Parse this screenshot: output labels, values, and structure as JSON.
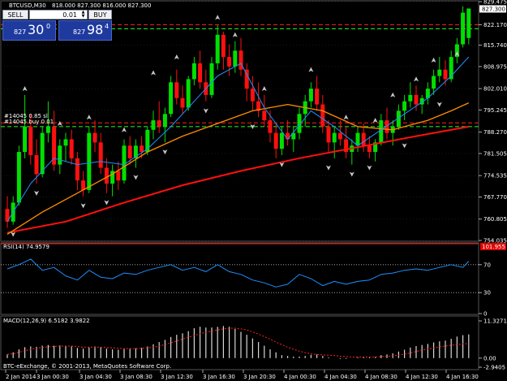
{
  "header": {
    "symbol": "BTCUSD,M30",
    "ohlc": "818.000 827.300 816.000 827.300"
  },
  "trade_panel": {
    "sell_label": "SELL",
    "buy_label": "BUY",
    "lot_value": "0.01",
    "sell_price_small": "827",
    "sell_price_big": "30",
    "sell_price_sup": "0",
    "buy_price_small": "827",
    "buy_price_big": "98",
    "buy_price_sup": "4"
  },
  "colors": {
    "bull": "#00e000",
    "bear": "#ff1010",
    "ma_slow": "#ff1010",
    "ma_mid": "#ff8c00",
    "ma_fast": "#1e90ff",
    "grid": "#2f2f2f",
    "sell_btn_bg": "#1f3a9e"
  },
  "chart_data": [
    {
      "type": "candlestick",
      "title": "BTCUSD,M30",
      "subtitle": "818.000 827.300 816.000 827.300",
      "ylim": [
        754.05,
        829.475
      ],
      "y_ticks": [
        "829.475",
        "822.170",
        "815.740",
        "808.975",
        "802.010",
        "795.245",
        "788.270",
        "781.505",
        "774.535",
        "767.770",
        "760.805",
        "754.035"
      ],
      "current_price": "827.300",
      "x_ticks": [
        "2 Jan 2014",
        "3 Jan 00:30",
        "3 Jan 04:30",
        "3 Jan 08:30",
        "3 Jan 12:30",
        "3 Jan 16:30",
        "3 Jan 20:30",
        "4 Jan 00:30",
        "4 Jan 04:30",
        "4 Jan 08:30",
        "4 Jan 12:30",
        "4 Jan 16:30"
      ],
      "order_label": "#14045  0.85 sl",
      "order_label_2": "#14045 buy 0.01",
      "order_levels": {
        "take_profit": 822.2,
        "entry_upper": 820.9,
        "stop_loss": 791.2,
        "entry": 790.0
      },
      "ohlc": [
        [
          764.0,
          768.0,
          758.0,
          760.0
        ],
        [
          760.0,
          768.0,
          759.0,
          766.0
        ],
        [
          766.0,
          784.0,
          765.0,
          782.0
        ],
        [
          782.0,
          800.0,
          780.0,
          790.0
        ],
        [
          790.0,
          794.0,
          778.0,
          781.0
        ],
        [
          781.0,
          786.0,
          772.0,
          775.0
        ],
        [
          775.0,
          790.0,
          774.0,
          788.0
        ],
        [
          788.0,
          798.0,
          785.0,
          790.0
        ],
        [
          790.0,
          795.0,
          776.0,
          778.0
        ],
        [
          778.0,
          786.0,
          775.0,
          784.0
        ],
        [
          784.0,
          788.0,
          779.0,
          786.0
        ],
        [
          786.0,
          789.0,
          778.0,
          780.0
        ],
        [
          780.0,
          782.0,
          770.0,
          773.0
        ],
        [
          773.0,
          776.0,
          768.0,
          770.0
        ],
        [
          770.0,
          790.0,
          769.0,
          788.0
        ],
        [
          788.0,
          792.0,
          782.0,
          785.0
        ],
        [
          785.0,
          788.0,
          775.0,
          777.0
        ],
        [
          777.0,
          780.0,
          769.0,
          772.0
        ],
        [
          772.0,
          778.0,
          768.0,
          776.0
        ],
        [
          776.0,
          779.0,
          770.0,
          773.0
        ],
        [
          773.0,
          786.0,
          772.0,
          784.0
        ],
        [
          784.0,
          787.0,
          778.0,
          780.0
        ],
        [
          780.0,
          786.0,
          777.0,
          784.0
        ],
        [
          784.0,
          787.0,
          780.0,
          782.0
        ],
        [
          782.0,
          790.0,
          781.0,
          789.0
        ],
        [
          789.0,
          795.0,
          786.0,
          792.0
        ],
        [
          792.0,
          798.0,
          788.0,
          790.0
        ],
        [
          790.0,
          796.0,
          785.0,
          794.0
        ],
        [
          794.0,
          806.0,
          793.0,
          804.0
        ],
        [
          804.0,
          808.0,
          797.0,
          799.0
        ],
        [
          799.0,
          803.0,
          794.0,
          796.0
        ],
        [
          796.0,
          806.0,
          795.0,
          805.0
        ],
        [
          805.0,
          812.0,
          803.0,
          810.0
        ],
        [
          810.0,
          814.0,
          802.0,
          804.0
        ],
        [
          804.0,
          808.0,
          798.0,
          800.0
        ],
        [
          800.0,
          812.0,
          799.0,
          810.0
        ],
        [
          810.0,
          822.0,
          808.0,
          819.0
        ],
        [
          819.0,
          820.0,
          808.0,
          812.0
        ],
        [
          812.0,
          816.0,
          806.0,
          809.0
        ],
        [
          809.0,
          817.0,
          807.0,
          814.0
        ],
        [
          814.0,
          818.0,
          806.0,
          808.0
        ],
        [
          808.0,
          810.0,
          798.0,
          802.0
        ],
        [
          802.0,
          806.0,
          795.0,
          798.0
        ],
        [
          798.0,
          804.0,
          793.0,
          795.0
        ],
        [
          795.0,
          800.0,
          790.0,
          792.0
        ],
        [
          792.0,
          795.0,
          785.0,
          788.0
        ],
        [
          788.0,
          791.0,
          780.0,
          783.0
        ],
        [
          783.0,
          790.0,
          781.0,
          788.0
        ],
        [
          788.0,
          792.0,
          784.0,
          786.0
        ],
        [
          786.0,
          790.0,
          782.0,
          788.0
        ],
        [
          788.0,
          796.0,
          786.0,
          794.0
        ],
        [
          794.0,
          800.0,
          790.0,
          798.0
        ],
        [
          798.0,
          804.0,
          796.0,
          802.0
        ],
        [
          802.0,
          806.0,
          795.0,
          797.0
        ],
        [
          797.0,
          800.0,
          788.0,
          790.0
        ],
        [
          790.0,
          792.0,
          782.0,
          785.0
        ],
        [
          785.0,
          790.0,
          780.0,
          788.0
        ],
        [
          788.0,
          792.0,
          784.0,
          786.0
        ],
        [
          786.0,
          790.0,
          780.0,
          782.0
        ],
        [
          782.0,
          786.0,
          778.0,
          784.0
        ],
        [
          784.0,
          790.0,
          782.0,
          788.0
        ],
        [
          788.0,
          791.0,
          782.0,
          784.0
        ],
        [
          784.0,
          787.0,
          780.0,
          782.0
        ],
        [
          782.0,
          786.0,
          779.0,
          785.0
        ],
        [
          785.0,
          794.0,
          784.0,
          792.0
        ],
        [
          792.0,
          796.0,
          786.0,
          788.0
        ],
        [
          788.0,
          792.0,
          784.0,
          790.0
        ],
        [
          790.0,
          797.0,
          789.0,
          795.0
        ],
        [
          795.0,
          800.0,
          792.0,
          798.0
        ],
        [
          798.0,
          804.0,
          796.0,
          800.0
        ],
        [
          800.0,
          803.0,
          795.0,
          797.0
        ],
        [
          797.0,
          800.0,
          794.0,
          799.0
        ],
        [
          799.0,
          804.0,
          797.0,
          802.0
        ],
        [
          802.0,
          808.0,
          800.0,
          806.0
        ],
        [
          806.0,
          812.0,
          804.0,
          808.0
        ],
        [
          808.0,
          811.0,
          803.0,
          805.0
        ],
        [
          805.0,
          814.0,
          804.0,
          812.0
        ],
        [
          812.0,
          818.0,
          810.0,
          816.0
        ],
        [
          816.0,
          828.0,
          815.0,
          826.0
        ],
        [
          818.0,
          827.3,
          816.0,
          827.3
        ]
      ],
      "ma_slow": [
        [
          0,
          756.5
        ],
        [
          10,
          760.0
        ],
        [
          20,
          766.0
        ],
        [
          30,
          771.5
        ],
        [
          40,
          776.0
        ],
        [
          50,
          780.0
        ],
        [
          60,
          783.5
        ],
        [
          70,
          787.0
        ],
        [
          79,
          790.0
        ]
      ],
      "ma_mid": [
        [
          0,
          756.0
        ],
        [
          6,
          763.0
        ],
        [
          12,
          769.0
        ],
        [
          18,
          775.0
        ],
        [
          24,
          782.0
        ],
        [
          30,
          787.0
        ],
        [
          36,
          791.0
        ],
        [
          42,
          795.0
        ],
        [
          48,
          797.0
        ],
        [
          54,
          795.0
        ],
        [
          60,
          790.0
        ],
        [
          66,
          789.0
        ],
        [
          72,
          792.0
        ],
        [
          76,
          795.0
        ],
        [
          79,
          797.5
        ]
      ],
      "ma_fast": [
        [
          0,
          760.0
        ],
        [
          4,
          772.0
        ],
        [
          8,
          780.0
        ],
        [
          12,
          778.0
        ],
        [
          16,
          779.0
        ],
        [
          20,
          778.0
        ],
        [
          24,
          783.0
        ],
        [
          28,
          790.0
        ],
        [
          32,
          798.0
        ],
        [
          36,
          806.0
        ],
        [
          40,
          810.0
        ],
        [
          44,
          796.0
        ],
        [
          48,
          786.0
        ],
        [
          52,
          795.0
        ],
        [
          56,
          790.0
        ],
        [
          60,
          784.0
        ],
        [
          64,
          789.0
        ],
        [
          68,
          794.0
        ],
        [
          72,
          799.0
        ],
        [
          76,
          806.0
        ],
        [
          79,
          812.0
        ]
      ],
      "fractals_up": [
        [
          3,
          801.0
        ],
        [
          9,
          790.0
        ],
        [
          14,
          792.0
        ],
        [
          20,
          788.0
        ],
        [
          25,
          806.0
        ],
        [
          29,
          811.0
        ],
        [
          36,
          823.5
        ],
        [
          39,
          818.0
        ],
        [
          44,
          801.0
        ],
        [
          52,
          807.0
        ],
        [
          58,
          792.0
        ],
        [
          63,
          791.0
        ],
        [
          66,
          799.0
        ],
        [
          70,
          804.0
        ],
        [
          73,
          810.0
        ],
        [
          77,
          812.0
        ]
      ],
      "fractals_down": [
        [
          1,
          757.0
        ],
        [
          5,
          770.0
        ],
        [
          13,
          766.0
        ],
        [
          17,
          767.0
        ],
        [
          22,
          775.0
        ],
        [
          27,
          783.0
        ],
        [
          34,
          796.0
        ],
        [
          42,
          791.0
        ],
        [
          47,
          779.0
        ],
        [
          55,
          778.0
        ],
        [
          59,
          776.0
        ],
        [
          62,
          778.0
        ],
        [
          68,
          785.0
        ],
        [
          74,
          798.0
        ]
      ]
    },
    {
      "type": "line",
      "title": "RSI(14) 74.9579",
      "ylim": [
        0,
        100
      ],
      "y_ticks": [
        "100",
        "70",
        "30",
        "0"
      ],
      "overbought": 70,
      "oversold": 30,
      "extreme_badge": "101.955",
      "values": [
        [
          0,
          64
        ],
        [
          2,
          70
        ],
        [
          4,
          78
        ],
        [
          6,
          62
        ],
        [
          8,
          66
        ],
        [
          10,
          54
        ],
        [
          12,
          48
        ],
        [
          14,
          62
        ],
        [
          16,
          52
        ],
        [
          18,
          50
        ],
        [
          20,
          58
        ],
        [
          22,
          56
        ],
        [
          24,
          62
        ],
        [
          26,
          66
        ],
        [
          28,
          70
        ],
        [
          30,
          62
        ],
        [
          32,
          66
        ],
        [
          34,
          60
        ],
        [
          36,
          70
        ],
        [
          38,
          60
        ],
        [
          40,
          56
        ],
        [
          42,
          48
        ],
        [
          44,
          44
        ],
        [
          46,
          38
        ],
        [
          48,
          42
        ],
        [
          50,
          56
        ],
        [
          52,
          50
        ],
        [
          54,
          40
        ],
        [
          56,
          46
        ],
        [
          58,
          42
        ],
        [
          60,
          46
        ],
        [
          62,
          48
        ],
        [
          64,
          56
        ],
        [
          66,
          58
        ],
        [
          68,
          62
        ],
        [
          70,
          64
        ],
        [
          72,
          62
        ],
        [
          74,
          66
        ],
        [
          76,
          70
        ],
        [
          78,
          66
        ],
        [
          79,
          74.96
        ]
      ]
    },
    {
      "type": "histogram",
      "title": "MACD(12,26,9) 6.5182 3.9822",
      "ylim": [
        -2.9405,
        11.3271
      ],
      "y_ticks": [
        "11.3271",
        "0.00",
        "-2.9405"
      ],
      "macd": [
        1.0,
        1.6,
        2.4,
        3.0,
        3.2,
        3.1,
        3.4,
        3.6,
        3.4,
        3.5,
        3.4,
        3.2,
        2.8,
        2.6,
        2.9,
        3.2,
        3.0,
        2.6,
        2.4,
        2.3,
        2.5,
        2.6,
        2.7,
        2.8,
        3.2,
        3.8,
        4.4,
        5.0,
        5.8,
        6.4,
        6.8,
        7.4,
        8.2,
        8.6,
        8.4,
        8.4,
        8.6,
        8.8,
        8.6,
        8.0,
        7.2,
        6.4,
        5.4,
        4.4,
        3.4,
        2.4,
        1.6,
        0.8,
        0.6,
        0.4,
        0.4,
        0.6,
        0.9,
        1.0,
        0.6,
        0.2,
        0.0,
        -0.2,
        -0.2,
        0.0,
        0.2,
        0.3,
        0.2,
        0.3,
        0.8,
        1.0,
        1.3,
        1.8,
        2.3,
        2.9,
        3.3,
        3.6,
        3.9,
        4.3,
        4.6,
        4.8,
        5.3,
        5.9,
        6.3,
        6.5
      ],
      "signal": [
        1.0,
        1.2,
        1.6,
        2.0,
        2.4,
        2.7,
        2.9,
        3.1,
        3.2,
        3.3,
        3.3,
        3.3,
        3.2,
        3.0,
        3.0,
        3.0,
        3.0,
        2.9,
        2.8,
        2.7,
        2.6,
        2.6,
        2.6,
        2.7,
        2.8,
        3.0,
        3.3,
        3.7,
        4.2,
        4.7,
        5.2,
        5.7,
        6.2,
        6.7,
        7.1,
        7.4,
        7.7,
        8.0,
        8.2,
        8.2,
        8.0,
        7.7,
        7.2,
        6.6,
        5.9,
        5.2,
        4.4,
        3.7,
        3.0,
        2.4,
        1.9,
        1.5,
        1.2,
        1.0,
        0.9,
        0.8,
        0.7,
        0.5,
        0.4,
        0.3,
        0.3,
        0.3,
        0.3,
        0.3,
        0.4,
        0.5,
        0.6,
        0.8,
        1.1,
        1.4,
        1.8,
        2.2,
        2.5,
        2.8,
        3.1,
        3.3,
        3.5,
        3.7,
        3.9,
        3.98
      ]
    }
  ],
  "footer": {
    "copyright": "BTC-eExchange, © 2001-2013, MetaQuotes Software Corp."
  }
}
